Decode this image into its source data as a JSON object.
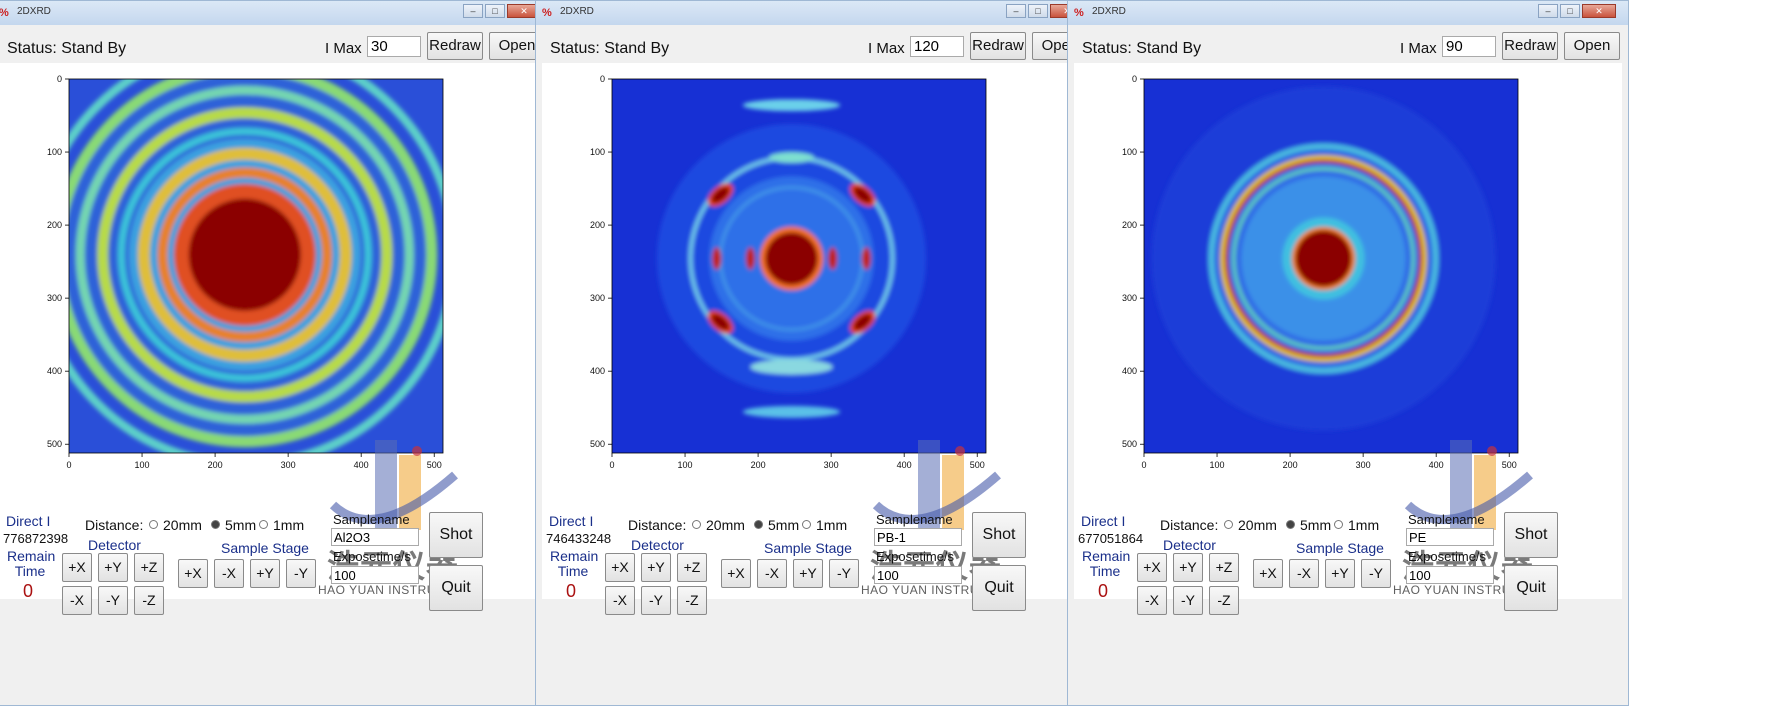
{
  "windows": [
    {
      "title": "2DXRD",
      "status": "Status: Stand By",
      "imax_label": "I Max",
      "imax_value": "30",
      "redraw_label": "Redraw",
      "open_label": "Open",
      "x_ticks": [
        "0",
        "100",
        "200",
        "300",
        "400",
        "500"
      ],
      "y_ticks": [
        "0",
        "100",
        "200",
        "300",
        "400",
        "500"
      ],
      "pattern": "rings",
      "direct_label": "Direct I",
      "direct_value": "776872398",
      "remain_label": "Remain Time",
      "remain_value": "0",
      "distance_label": "Distance:",
      "distance_options": [
        "20mm",
        "5mm",
        "1mm"
      ],
      "distance_selected": "5mm",
      "detector_label": "Detector",
      "stage_label": "Sample Stage",
      "detector_buttons": [
        "+X",
        "+Y",
        "+Z",
        "-X",
        "-Y",
        "-Z"
      ],
      "stage_buttons": [
        "+X",
        "-X",
        "+Y",
        "-Y"
      ],
      "samplename_label": "Samplename",
      "samplename_value": "Al2O3",
      "expose_label": "Exposetime/s",
      "expose_value": "100",
      "shot_label": "Shot",
      "quit_label": "Quit",
      "watermark_cn": "浩元仪器",
      "watermark_en": "HAO YUAN   INSTRUMENT"
    },
    {
      "title": "2DXRD",
      "status": "Status: Stand By",
      "imax_label": "I Max",
      "imax_value": "120",
      "redraw_label": "Redraw",
      "open_label": "Open",
      "x_ticks": [
        "0",
        "100",
        "200",
        "300",
        "400",
        "500"
      ],
      "y_ticks": [
        "0",
        "100",
        "200",
        "300",
        "400",
        "500"
      ],
      "pattern": "fiber",
      "direct_label": "Direct I",
      "direct_value": "746433248",
      "remain_label": "Remain Time",
      "remain_value": "0",
      "distance_label": "Distance:",
      "distance_options": [
        "20mm",
        "5mm",
        "1mm"
      ],
      "distance_selected": "5mm",
      "detector_label": "Detector",
      "stage_label": "Sample Stage",
      "detector_buttons": [
        "+X",
        "+Y",
        "+Z",
        "-X",
        "-Y",
        "-Z"
      ],
      "stage_buttons": [
        "+X",
        "-X",
        "+Y",
        "-Y"
      ],
      "samplename_label": "Samplename",
      "samplename_value": "PB-1",
      "expose_label": "Exposetime/s",
      "expose_value": "100",
      "shot_label": "Shot",
      "quit_label": "Quit",
      "watermark_cn": "浩元仪器",
      "watermark_en": "HAO YUAN   INSTRUMENT"
    },
    {
      "title": "2DXRD",
      "status": "Status: Stand By",
      "imax_label": "I Max",
      "imax_value": "90",
      "redraw_label": "Redraw",
      "open_label": "Open",
      "x_ticks": [
        "0",
        "100",
        "200",
        "300",
        "400",
        "500"
      ],
      "y_ticks": [
        "0",
        "100",
        "200",
        "300",
        "400",
        "500"
      ],
      "pattern": "ring",
      "direct_label": "Direct I",
      "direct_value": "677051864",
      "remain_label": "Remain Time",
      "remain_value": "0",
      "distance_label": "Distance:",
      "distance_options": [
        "20mm",
        "5mm",
        "1mm"
      ],
      "distance_selected": "5mm",
      "detector_label": "Detector",
      "stage_label": "Sample Stage",
      "detector_buttons": [
        "+X",
        "+Y",
        "+Z",
        "-X",
        "-Y",
        "-Z"
      ],
      "stage_buttons": [
        "+X",
        "-X",
        "+Y",
        "-Y"
      ],
      "samplename_label": "Samplename",
      "samplename_value": "PE",
      "expose_label": "Exposetime/s",
      "expose_value": "100",
      "shot_label": "Shot",
      "quit_label": "Quit",
      "watermark_cn": "浩元仪器",
      "watermark_en": "HAO YUAN   INSTRUMENT"
    }
  ],
  "colors": {
    "jet_low": "#1a2fd0",
    "jet_mid": "#39e6d0",
    "jet_high": "#f0e020",
    "jet_max": "#8b0000",
    "label_blue": "#1a2f8a",
    "label_red": "#aa1111"
  }
}
